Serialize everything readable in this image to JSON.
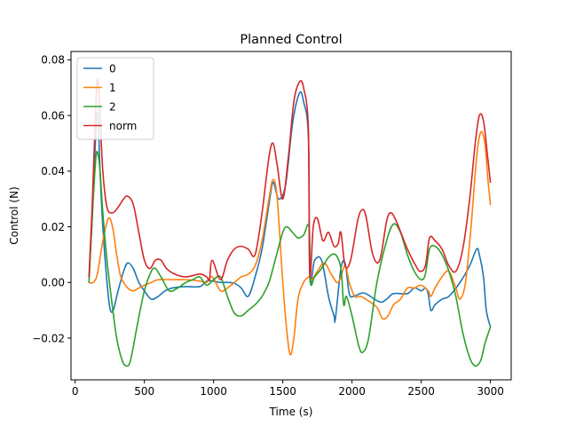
{
  "chart_data": {
    "type": "line",
    "title": "Planned Control",
    "xlabel": "Time (s)",
    "ylabel": "Control (N)",
    "xlim": [
      -30,
      3150
    ],
    "ylim": [
      -0.035,
      0.083
    ],
    "grid": false,
    "legend_position": "upper-left",
    "x_ticks": [
      0,
      500,
      1000,
      1500,
      2000,
      2500,
      3000
    ],
    "y_ticks": [
      -0.02,
      0.0,
      0.02,
      0.04,
      0.06,
      0.08
    ],
    "x_tick_labels": [
      "0",
      "500",
      "1000",
      "1500",
      "2000",
      "2500",
      "3000"
    ],
    "y_tick_labels": [
      "−0.02",
      "0.00",
      "0.02",
      "0.04",
      "0.06",
      "0.08"
    ],
    "series": [
      {
        "name": "0",
        "color": "#1f77b4",
        "points": [
          [
            100,
            0.002
          ],
          [
            125,
            0.025
          ],
          [
            150,
            0.055
          ],
          [
            165,
            0.06
          ],
          [
            180,
            0.04
          ],
          [
            200,
            0.02
          ],
          [
            225,
            0.003
          ],
          [
            250,
            -0.009
          ],
          [
            275,
            -0.01
          ],
          [
            310,
            -0.003
          ],
          [
            350,
            0.004
          ],
          [
            380,
            0.007
          ],
          [
            420,
            0.005
          ],
          [
            460,
            0.0
          ],
          [
            500,
            -0.003
          ],
          [
            550,
            -0.006
          ],
          [
            600,
            -0.005
          ],
          [
            650,
            -0.003
          ],
          [
            700,
            -0.002
          ],
          [
            800,
            -0.0015
          ],
          [
            900,
            -0.0015
          ],
          [
            950,
            0.0005
          ],
          [
            990,
            0.0005
          ],
          [
            1050,
            0.0
          ],
          [
            1100,
            0.0
          ],
          [
            1150,
            -0.0003
          ],
          [
            1200,
            -0.002
          ],
          [
            1250,
            -0.005
          ],
          [
            1300,
            0.002
          ],
          [
            1350,
            0.012
          ],
          [
            1400,
            0.028
          ],
          [
            1430,
            0.036
          ],
          [
            1470,
            0.03
          ],
          [
            1520,
            0.035
          ],
          [
            1570,
            0.057
          ],
          [
            1620,
            0.068
          ],
          [
            1650,
            0.065
          ],
          [
            1685,
            0.052
          ],
          [
            1695,
            0.002
          ],
          [
            1730,
            0.008
          ],
          [
            1780,
            0.008
          ],
          [
            1830,
            -0.005
          ],
          [
            1870,
            -0.012
          ],
          [
            1880,
            -0.013
          ],
          [
            1920,
            0.005
          ],
          [
            1950,
            0.007
          ],
          [
            1980,
            -0.004
          ],
          [
            2010,
            -0.005
          ],
          [
            2060,
            -0.004
          ],
          [
            2100,
            -0.004
          ],
          [
            2200,
            -0.007
          ],
          [
            2250,
            -0.006
          ],
          [
            2300,
            -0.004
          ],
          [
            2400,
            -0.004
          ],
          [
            2450,
            -0.002
          ],
          [
            2500,
            -0.003
          ],
          [
            2530,
            -0.002
          ],
          [
            2550,
            -0.004
          ],
          [
            2570,
            -0.01
          ],
          [
            2600,
            -0.008
          ],
          [
            2650,
            -0.006
          ],
          [
            2700,
            -0.005
          ],
          [
            2780,
            0.0
          ],
          [
            2850,
            0.006
          ],
          [
            2900,
            0.012
          ],
          [
            2920,
            0.01
          ],
          [
            2950,
            0.002
          ],
          [
            2970,
            -0.01
          ],
          [
            3000,
            -0.016
          ]
        ]
      },
      {
        "name": "1",
        "color": "#ff7f0e",
        "points": [
          [
            100,
            0.0
          ],
          [
            130,
            0.0
          ],
          [
            160,
            0.003
          ],
          [
            200,
            0.015
          ],
          [
            240,
            0.023
          ],
          [
            270,
            0.02
          ],
          [
            300,
            0.01
          ],
          [
            330,
            0.002
          ],
          [
            380,
            -0.002
          ],
          [
            420,
            -0.003
          ],
          [
            460,
            -0.002
          ],
          [
            500,
            -0.001
          ],
          [
            550,
            0.0
          ],
          [
            600,
            0.001
          ],
          [
            700,
            0.001
          ],
          [
            800,
            0.001
          ],
          [
            900,
            0.0005
          ],
          [
            950,
            0.0
          ],
          [
            990,
            0.002
          ],
          [
            1050,
            -0.003
          ],
          [
            1100,
            -0.002
          ],
          [
            1150,
            0.0
          ],
          [
            1200,
            0.002
          ],
          [
            1250,
            0.003
          ],
          [
            1300,
            0.006
          ],
          [
            1350,
            0.015
          ],
          [
            1400,
            0.03
          ],
          [
            1430,
            0.037
          ],
          [
            1460,
            0.03
          ],
          [
            1500,
            0.0
          ],
          [
            1530,
            -0.018
          ],
          [
            1555,
            -0.026
          ],
          [
            1580,
            -0.02
          ],
          [
            1610,
            -0.006
          ],
          [
            1650,
            0.0
          ],
          [
            1690,
            0.002
          ],
          [
            1710,
            0.001
          ],
          [
            1750,
            0.004
          ],
          [
            1800,
            0.007
          ],
          [
            1850,
            0.003
          ],
          [
            1900,
            0.0
          ],
          [
            1950,
            0.006
          ],
          [
            1980,
            0.0
          ],
          [
            2020,
            -0.005
          ],
          [
            2060,
            -0.005
          ],
          [
            2100,
            -0.006
          ],
          [
            2180,
            -0.009
          ],
          [
            2220,
            -0.013
          ],
          [
            2260,
            -0.012
          ],
          [
            2300,
            -0.008
          ],
          [
            2350,
            -0.006
          ],
          [
            2400,
            -0.002
          ],
          [
            2450,
            -0.002
          ],
          [
            2500,
            -0.001
          ],
          [
            2550,
            -0.003
          ],
          [
            2570,
            -0.005
          ],
          [
            2600,
            -0.002
          ],
          [
            2650,
            0.002
          ],
          [
            2700,
            0.004
          ],
          [
            2750,
            -0.002
          ],
          [
            2780,
            -0.006
          ],
          [
            2820,
            0.0
          ],
          [
            2860,
            0.02
          ],
          [
            2900,
            0.045
          ],
          [
            2930,
            0.054
          ],
          [
            2960,
            0.05
          ],
          [
            2980,
            0.038
          ],
          [
            3000,
            0.028
          ]
        ]
      },
      {
        "name": "2",
        "color": "#2ca02c",
        "points": [
          [
            100,
            0.0
          ],
          [
            125,
            0.025
          ],
          [
            150,
            0.045
          ],
          [
            165,
            0.046
          ],
          [
            180,
            0.04
          ],
          [
            200,
            0.025
          ],
          [
            230,
            0.008
          ],
          [
            260,
            -0.005
          ],
          [
            300,
            -0.02
          ],
          [
            340,
            -0.028
          ],
          [
            370,
            -0.03
          ],
          [
            400,
            -0.028
          ],
          [
            450,
            -0.015
          ],
          [
            500,
            -0.003
          ],
          [
            550,
            0.004
          ],
          [
            580,
            0.005
          ],
          [
            620,
            0.002
          ],
          [
            680,
            -0.003
          ],
          [
            740,
            -0.002
          ],
          [
            800,
            0.0
          ],
          [
            850,
            0.001
          ],
          [
            900,
            0.002
          ],
          [
            950,
            -0.001
          ],
          [
            1000,
            0.001
          ],
          [
            1050,
            0.002
          ],
          [
            1100,
            -0.005
          ],
          [
            1150,
            -0.011
          ],
          [
            1200,
            -0.012
          ],
          [
            1250,
            -0.01
          ],
          [
            1300,
            -0.008
          ],
          [
            1350,
            -0.005
          ],
          [
            1400,
            0.0
          ],
          [
            1450,
            0.009
          ],
          [
            1500,
            0.018
          ],
          [
            1530,
            0.02
          ],
          [
            1570,
            0.018
          ],
          [
            1610,
            0.016
          ],
          [
            1650,
            0.017
          ],
          [
            1690,
            0.02
          ],
          [
            1700,
            0.0
          ],
          [
            1730,
            0.002
          ],
          [
            1780,
            0.005
          ],
          [
            1830,
            0.009
          ],
          [
            1880,
            0.01
          ],
          [
            1920,
            0.005
          ],
          [
            1940,
            -0.008
          ],
          [
            1960,
            -0.005
          ],
          [
            2000,
            -0.012
          ],
          [
            2050,
            -0.023
          ],
          [
            2080,
            -0.025
          ],
          [
            2120,
            -0.02
          ],
          [
            2180,
            0.0
          ],
          [
            2250,
            0.015
          ],
          [
            2300,
            0.021
          ],
          [
            2350,
            0.018
          ],
          [
            2400,
            0.01
          ],
          [
            2450,
            0.004
          ],
          [
            2500,
            0.001
          ],
          [
            2530,
            0.003
          ],
          [
            2560,
            0.012
          ],
          [
            2600,
            0.013
          ],
          [
            2650,
            0.01
          ],
          [
            2700,
            0.004
          ],
          [
            2750,
            -0.005
          ],
          [
            2800,
            -0.018
          ],
          [
            2850,
            -0.027
          ],
          [
            2890,
            -0.03
          ],
          [
            2930,
            -0.028
          ],
          [
            2960,
            -0.022
          ],
          [
            3000,
            -0.016
          ]
        ]
      },
      {
        "name": "norm",
        "color": "#d62728",
        "points": [
          [
            100,
            0.002
          ],
          [
            125,
            0.03
          ],
          [
            150,
            0.065
          ],
          [
            165,
            0.073
          ],
          [
            180,
            0.06
          ],
          [
            200,
            0.04
          ],
          [
            230,
            0.027
          ],
          [
            270,
            0.025
          ],
          [
            310,
            0.027
          ],
          [
            350,
            0.03
          ],
          [
            380,
            0.031
          ],
          [
            420,
            0.028
          ],
          [
            460,
            0.018
          ],
          [
            500,
            0.008
          ],
          [
            540,
            0.005
          ],
          [
            580,
            0.008
          ],
          [
            620,
            0.008
          ],
          [
            660,
            0.005
          ],
          [
            720,
            0.003
          ],
          [
            800,
            0.002
          ],
          [
            900,
            0.003
          ],
          [
            950,
            0.002
          ],
          [
            970,
            0.001
          ],
          [
            990,
            0.008
          ],
          [
            1050,
            0.001
          ],
          [
            1100,
            0.008
          ],
          [
            1150,
            0.012
          ],
          [
            1200,
            0.013
          ],
          [
            1250,
            0.012
          ],
          [
            1300,
            0.01
          ],
          [
            1350,
            0.025
          ],
          [
            1400,
            0.045
          ],
          [
            1430,
            0.05
          ],
          [
            1460,
            0.042
          ],
          [
            1500,
            0.03
          ],
          [
            1540,
            0.045
          ],
          [
            1580,
            0.065
          ],
          [
            1620,
            0.072
          ],
          [
            1650,
            0.07
          ],
          [
            1685,
            0.055
          ],
          [
            1695,
            0.003
          ],
          [
            1720,
            0.02
          ],
          [
            1750,
            0.023
          ],
          [
            1790,
            0.015
          ],
          [
            1830,
            0.018
          ],
          [
            1870,
            0.013
          ],
          [
            1900,
            0.014
          ],
          [
            1920,
            0.018
          ],
          [
            1950,
            0.006
          ],
          [
            1990,
            0.008
          ],
          [
            2040,
            0.022
          ],
          [
            2070,
            0.026
          ],
          [
            2100,
            0.024
          ],
          [
            2150,
            0.01
          ],
          [
            2200,
            0.008
          ],
          [
            2250,
            0.022
          ],
          [
            2280,
            0.025
          ],
          [
            2320,
            0.022
          ],
          [
            2400,
            0.012
          ],
          [
            2450,
            0.007
          ],
          [
            2490,
            0.004
          ],
          [
            2530,
            0.006
          ],
          [
            2560,
            0.016
          ],
          [
            2600,
            0.015
          ],
          [
            2650,
            0.012
          ],
          [
            2700,
            0.006
          ],
          [
            2750,
            0.004
          ],
          [
            2800,
            0.012
          ],
          [
            2850,
            0.03
          ],
          [
            2890,
            0.05
          ],
          [
            2920,
            0.06
          ],
          [
            2950,
            0.058
          ],
          [
            2980,
            0.045
          ],
          [
            3000,
            0.036
          ]
        ]
      }
    ]
  }
}
